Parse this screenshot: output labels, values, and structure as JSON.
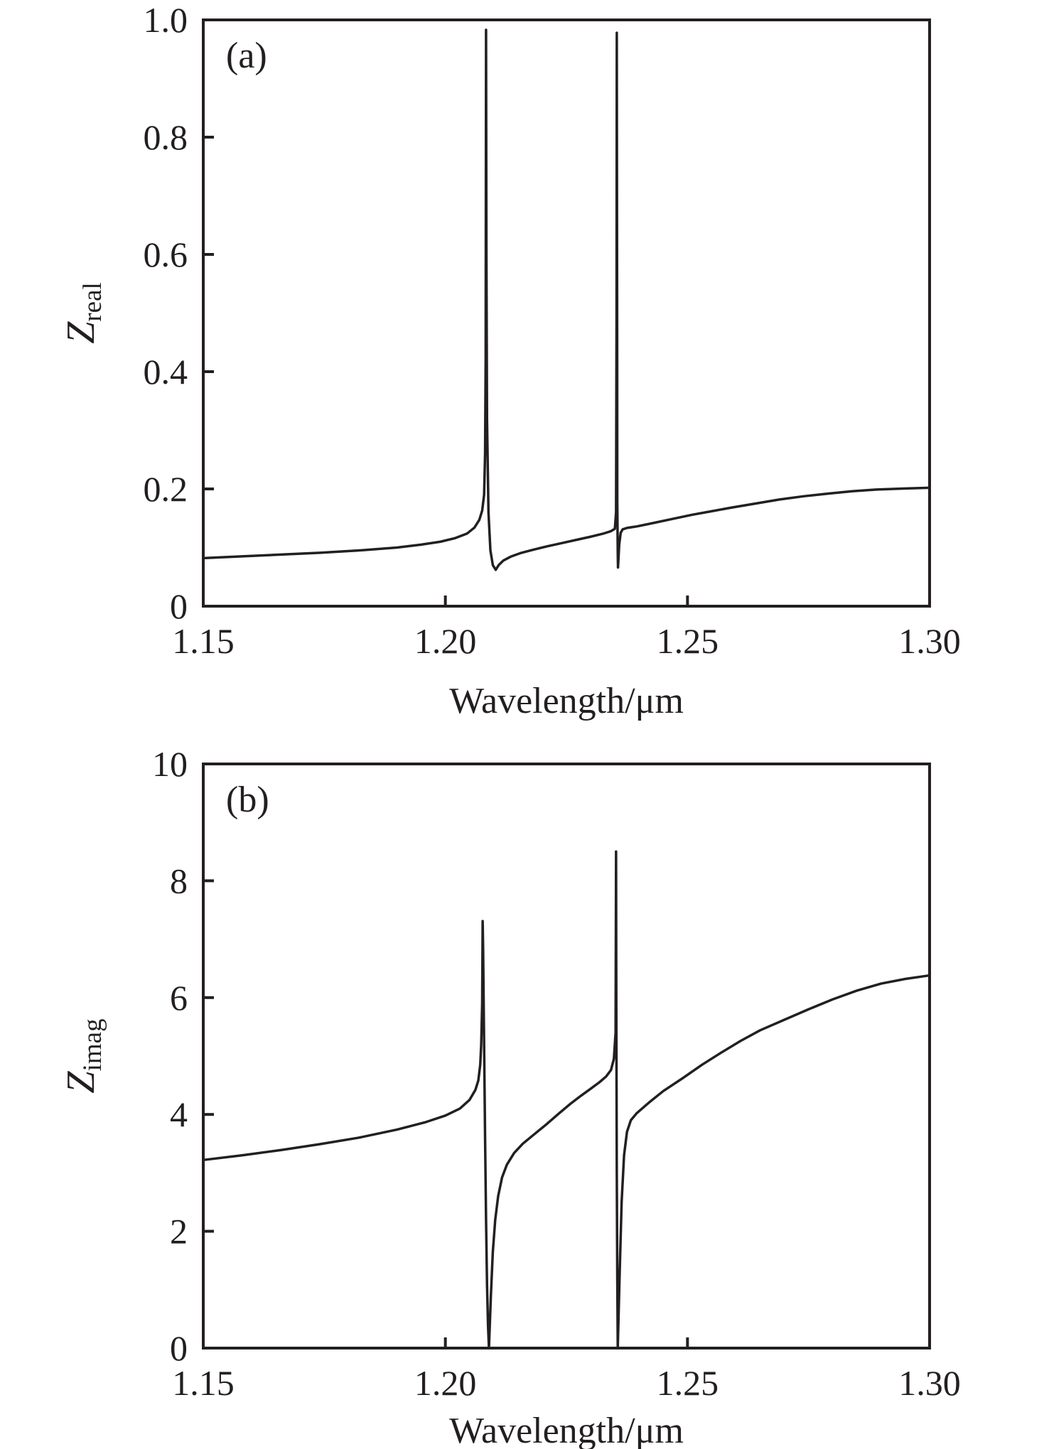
{
  "figure": {
    "background": "#ffffff",
    "line_color": "#231f20",
    "axis_color": "#231f20"
  },
  "chart_data": [
    {
      "type": "line",
      "panel_label": "(a)",
      "xlabel": "Wavelength/μm",
      "ylabel_main": "Z",
      "ylabel_sub": "real",
      "xlim": [
        1.15,
        1.3
      ],
      "ylim": [
        0,
        1.0
      ],
      "grid": false,
      "legend": false,
      "xticks": [
        {
          "value": 1.15,
          "label": "1.15"
        },
        {
          "value": 1.2,
          "label": "1.20"
        },
        {
          "value": 1.25,
          "label": "1.25"
        },
        {
          "value": 1.3,
          "label": "1.30"
        }
      ],
      "yticks": [
        {
          "value": 0,
          "label": "0"
        },
        {
          "value": 0.2,
          "label": "0.2"
        },
        {
          "value": 0.4,
          "label": "0.4"
        },
        {
          "value": 0.6,
          "label": "0.6"
        },
        {
          "value": 0.8,
          "label": "0.8"
        },
        {
          "value": 1.0,
          "label": "1.0"
        }
      ],
      "series": [
        {
          "name": "Z_real",
          "points": [
            [
              1.15,
              0.082
            ],
            [
              1.158,
              0.085
            ],
            [
              1.166,
              0.088
            ],
            [
              1.174,
              0.091
            ],
            [
              1.182,
              0.095
            ],
            [
              1.19,
              0.1
            ],
            [
              1.195,
              0.105
            ],
            [
              1.199,
              0.11
            ],
            [
              1.202,
              0.116
            ],
            [
              1.2045,
              0.124
            ],
            [
              1.206,
              0.134
            ],
            [
              1.207,
              0.147
            ],
            [
              1.2076,
              0.163
            ],
            [
              1.208,
              0.19
            ],
            [
              1.2082,
              0.26
            ],
            [
              1.20832,
              0.42
            ],
            [
              1.2084,
              0.983
            ],
            [
              1.20848,
              0.6
            ],
            [
              1.2086,
              0.32
            ],
            [
              1.2089,
              0.16
            ],
            [
              1.2093,
              0.095
            ],
            [
              1.2098,
              0.07
            ],
            [
              1.2104,
              0.062
            ],
            [
              1.211,
              0.07
            ],
            [
              1.212,
              0.078
            ],
            [
              1.2135,
              0.0845
            ],
            [
              1.2155,
              0.0905
            ],
            [
              1.218,
              0.096
            ],
            [
              1.221,
              0.102
            ],
            [
              1.224,
              0.1075
            ],
            [
              1.227,
              0.113
            ],
            [
              1.23,
              0.1185
            ],
            [
              1.2325,
              0.1235
            ],
            [
              1.2342,
              0.128
            ],
            [
              1.235,
              0.132
            ],
            [
              1.23525,
              0.16
            ],
            [
              1.23535,
              0.5
            ],
            [
              1.2354,
              0.978
            ],
            [
              1.23548,
              0.45
            ],
            [
              1.2355,
              0.18
            ],
            [
              1.2356,
              0.09
            ],
            [
              1.23565,
              0.066
            ],
            [
              1.2359,
              0.105
            ],
            [
              1.2362,
              0.125
            ],
            [
              1.2366,
              0.131
            ],
            [
              1.2375,
              0.1335
            ],
            [
              1.2395,
              0.136
            ],
            [
              1.243,
              0.142
            ],
            [
              1.247,
              0.149
            ],
            [
              1.251,
              0.156
            ],
            [
              1.255,
              0.162
            ],
            [
              1.259,
              0.168
            ],
            [
              1.264,
              0.175
            ],
            [
              1.269,
              0.182
            ],
            [
              1.274,
              0.1875
            ],
            [
              1.279,
              0.192
            ],
            [
              1.284,
              0.196
            ],
            [
              1.289,
              0.199
            ],
            [
              1.294,
              0.2005
            ],
            [
              1.3,
              0.202
            ]
          ]
        }
      ]
    },
    {
      "type": "line",
      "panel_label": "(b)",
      "xlabel": "Wavelength/μm",
      "ylabel_main": "Z",
      "ylabel_sub": "imag",
      "xlim": [
        1.15,
        1.3
      ],
      "ylim": [
        0,
        10
      ],
      "grid": false,
      "legend": false,
      "xticks": [
        {
          "value": 1.15,
          "label": "1.15"
        },
        {
          "value": 1.2,
          "label": "1.20"
        },
        {
          "value": 1.25,
          "label": "1.25"
        },
        {
          "value": 1.3,
          "label": "1.30"
        }
      ],
      "yticks": [
        {
          "value": 0,
          "label": "0"
        },
        {
          "value": 2,
          "label": "2"
        },
        {
          "value": 4,
          "label": "4"
        },
        {
          "value": 6,
          "label": "6"
        },
        {
          "value": 8,
          "label": "8"
        },
        {
          "value": 10,
          "label": "10"
        }
      ],
      "series": [
        {
          "name": "Z_imag",
          "points": [
            [
              1.15,
              3.22
            ],
            [
              1.158,
              3.3
            ],
            [
              1.166,
              3.39
            ],
            [
              1.174,
              3.49
            ],
            [
              1.182,
              3.6
            ],
            [
              1.19,
              3.74
            ],
            [
              1.196,
              3.87
            ],
            [
              1.2,
              3.98
            ],
            [
              1.203,
              4.1
            ],
            [
              1.205,
              4.25
            ],
            [
              1.2062,
              4.42
            ],
            [
              1.2068,
              4.58
            ],
            [
              1.2072,
              4.85
            ],
            [
              1.2074,
              5.2
            ],
            [
              1.2076,
              5.9
            ],
            [
              1.2077,
              7.31
            ],
            [
              1.2078,
              6.8
            ],
            [
              1.208,
              5.2
            ],
            [
              1.2082,
              3.6
            ],
            [
              1.2084,
              2.2
            ],
            [
              1.2086,
              1.1
            ],
            [
              1.2088,
              0.4
            ],
            [
              1.209,
              0.0
            ],
            [
              1.2094,
              0.9
            ],
            [
              1.2098,
              1.65
            ],
            [
              1.2103,
              2.2
            ],
            [
              1.2109,
              2.6
            ],
            [
              1.2117,
              2.92
            ],
            [
              1.2127,
              3.14
            ],
            [
              1.2142,
              3.34
            ],
            [
              1.216,
              3.5
            ],
            [
              1.2185,
              3.67
            ],
            [
              1.221,
              3.84
            ],
            [
              1.2235,
              4.02
            ],
            [
              1.2258,
              4.18
            ],
            [
              1.228,
              4.32
            ],
            [
              1.23,
              4.44
            ],
            [
              1.2318,
              4.55
            ],
            [
              1.2332,
              4.65
            ],
            [
              1.2342,
              4.76
            ],
            [
              1.2348,
              4.95
            ],
            [
              1.23515,
              5.4
            ],
            [
              1.23525,
              8.5
            ],
            [
              1.2353,
              6.0
            ],
            [
              1.2354,
              3.0
            ],
            [
              1.2355,
              1.2
            ],
            [
              1.2356,
              0.0
            ],
            [
              1.236,
              1.3
            ],
            [
              1.2364,
              2.5
            ],
            [
              1.2369,
              3.3
            ],
            [
              1.2375,
              3.7
            ],
            [
              1.2383,
              3.9
            ],
            [
              1.2395,
              4.02
            ],
            [
              1.242,
              4.2
            ],
            [
              1.245,
              4.4
            ],
            [
              1.249,
              4.62
            ],
            [
              1.253,
              4.85
            ],
            [
              1.257,
              5.06
            ],
            [
              1.261,
              5.26
            ],
            [
              1.265,
              5.44
            ],
            [
              1.27,
              5.62
            ],
            [
              1.275,
              5.8
            ],
            [
              1.28,
              5.97
            ],
            [
              1.285,
              6.12
            ],
            [
              1.29,
              6.24
            ],
            [
              1.295,
              6.32
            ],
            [
              1.3,
              6.38
            ]
          ]
        }
      ]
    }
  ]
}
